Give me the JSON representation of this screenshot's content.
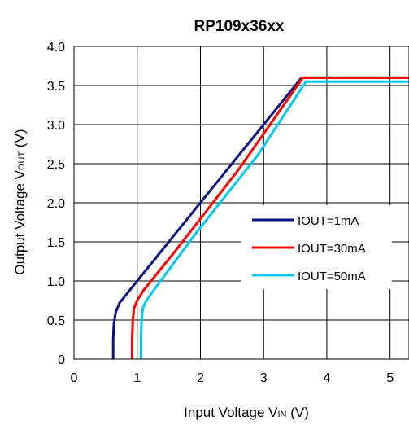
{
  "chart_data": {
    "type": "line",
    "title": "RP109x36xx",
    "xlabel": {
      "main": "Input Voltage V",
      "sub": "IN",
      "unit": " (V)"
    },
    "ylabel": {
      "main": "Output Voltage V",
      "sub": "OUT",
      "unit": " (V)"
    },
    "xlim": [
      0,
      5.3
    ],
    "ylim": [
      0,
      4.0
    ],
    "xticks": [
      "0",
      "1",
      "2",
      "3",
      "4",
      "5"
    ],
    "yticks": [
      "0",
      "0.5",
      "1.0",
      "1.5",
      "2.0",
      "2.5",
      "3.0",
      "3.5",
      "4.0"
    ],
    "grid": true,
    "legend_position": "lower-right",
    "series": [
      {
        "name": "IOUT=1mA",
        "color": "#0a1580",
        "points": [
          [
            0.62,
            0
          ],
          [
            0.62,
            0.25
          ],
          [
            0.63,
            0.45
          ],
          [
            0.66,
            0.6
          ],
          [
            0.72,
            0.72
          ],
          [
            0.85,
            0.85
          ],
          [
            1.0,
            1.0
          ],
          [
            3.6,
            3.6
          ],
          [
            5.3,
            3.6
          ]
        ]
      },
      {
        "name": "IOUT=30mA",
        "color": "#ff0000",
        "points": [
          [
            0.92,
            0
          ],
          [
            0.92,
            0.25
          ],
          [
            0.93,
            0.5
          ],
          [
            0.95,
            0.65
          ],
          [
            1.0,
            0.75
          ],
          [
            1.1,
            0.88
          ],
          [
            1.6,
            1.38
          ],
          [
            2.6,
            2.42
          ],
          [
            3.62,
            3.6
          ],
          [
            5.3,
            3.6
          ]
        ]
      },
      {
        "name": "IOUT=50mA",
        "color": "#00c8f0",
        "points": [
          [
            1.06,
            0
          ],
          [
            1.06,
            0.25
          ],
          [
            1.07,
            0.5
          ],
          [
            1.09,
            0.65
          ],
          [
            1.13,
            0.73
          ],
          [
            1.25,
            0.87
          ],
          [
            1.9,
            1.58
          ],
          [
            2.9,
            2.6
          ],
          [
            3.67,
            3.55
          ],
          [
            5.3,
            3.55
          ]
        ]
      }
    ]
  }
}
